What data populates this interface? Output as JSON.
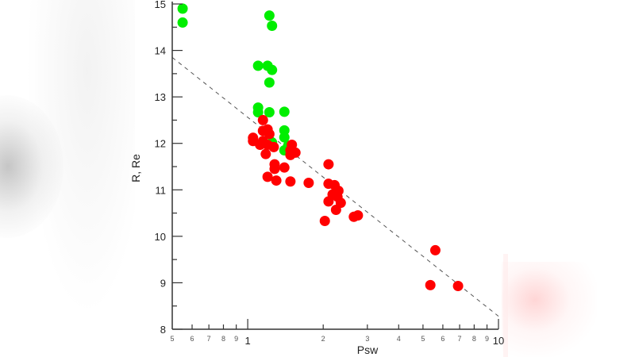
{
  "chart_data": {
    "type": "scatter",
    "title": "",
    "xlabel": "Psw",
    "ylabel": "R, Re",
    "xscale": "log",
    "xlim": [
      0.5,
      10
    ],
    "ylim": [
      8,
      15
    ],
    "x_tick_labels": [
      "5",
      "6",
      "7",
      "8",
      "9",
      "1",
      "2",
      "3",
      "4",
      "5",
      "6",
      "7",
      "8",
      "9",
      "10"
    ],
    "x_tick_values": [
      0.5,
      0.6,
      0.7,
      0.8,
      0.9,
      1,
      2,
      3,
      4,
      5,
      6,
      7,
      8,
      9,
      10
    ],
    "y_tick_labels": [
      "8",
      "9",
      "10",
      "11",
      "12",
      "13",
      "14",
      "15"
    ],
    "y_tick_values": [
      8,
      9,
      10,
      11,
      12,
      13,
      14,
      15
    ],
    "grid": false,
    "legend": null,
    "series": [
      {
        "name": "green",
        "color": "#00ee00",
        "points": [
          [
            0.55,
            14.9
          ],
          [
            0.55,
            14.6
          ],
          [
            1.22,
            14.75
          ],
          [
            1.25,
            14.53
          ],
          [
            1.1,
            13.67
          ],
          [
            1.2,
            13.67
          ],
          [
            1.25,
            13.58
          ],
          [
            1.22,
            13.31
          ],
          [
            1.1,
            12.77
          ],
          [
            1.1,
            12.67
          ],
          [
            1.22,
            12.67
          ],
          [
            1.4,
            12.68
          ],
          [
            1.4,
            12.28
          ],
          [
            1.4,
            12.13
          ],
          [
            1.25,
            12.02
          ],
          [
            1.45,
            11.95
          ],
          [
            1.4,
            11.85
          ]
        ]
      },
      {
        "name": "red",
        "color": "#ff0000",
        "points": [
          [
            1.15,
            12.5
          ],
          [
            1.2,
            12.3
          ],
          [
            1.15,
            12.27
          ],
          [
            1.22,
            12.2
          ],
          [
            1.05,
            12.12
          ],
          [
            1.05,
            12.05
          ],
          [
            1.15,
            12.05
          ],
          [
            1.12,
            11.97
          ],
          [
            1.2,
            11.97
          ],
          [
            1.27,
            11.92
          ],
          [
            1.5,
            11.97
          ],
          [
            1.48,
            11.85
          ],
          [
            1.55,
            11.8
          ],
          [
            1.48,
            11.75
          ],
          [
            1.18,
            11.77
          ],
          [
            1.28,
            11.55
          ],
          [
            1.28,
            11.45
          ],
          [
            1.4,
            11.48
          ],
          [
            1.2,
            11.28
          ],
          [
            1.3,
            11.2
          ],
          [
            1.48,
            11.18
          ],
          [
            1.75,
            11.15
          ],
          [
            2.1,
            11.55
          ],
          [
            2.1,
            11.13
          ],
          [
            2.22,
            11.1
          ],
          [
            2.3,
            10.98
          ],
          [
            2.18,
            10.9
          ],
          [
            2.28,
            10.85
          ],
          [
            2.1,
            10.75
          ],
          [
            2.35,
            10.72
          ],
          [
            2.25,
            10.57
          ],
          [
            2.65,
            10.42
          ],
          [
            2.75,
            10.45
          ],
          [
            2.03,
            10.33
          ],
          [
            5.6,
            9.7
          ],
          [
            5.35,
            8.95
          ],
          [
            6.9,
            8.93
          ]
        ]
      }
    ],
    "fit_line": {
      "style": "dashed",
      "color": "#555555",
      "points": [
        [
          0.5,
          13.85
        ],
        [
          10,
          8.28
        ]
      ]
    }
  }
}
